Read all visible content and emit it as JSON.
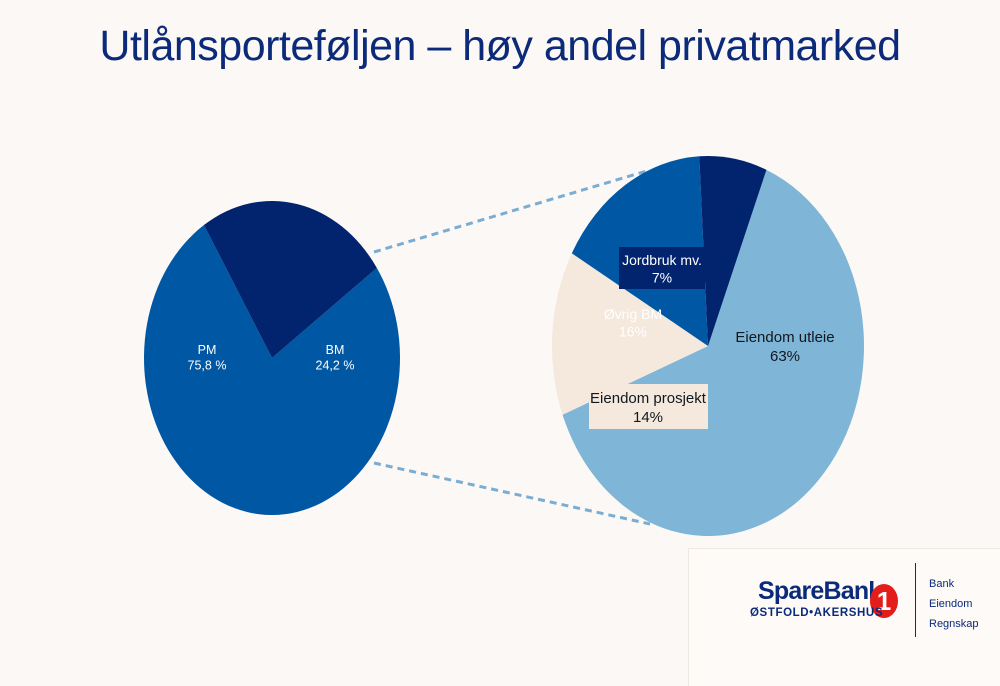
{
  "title": "Utlånsporteføljen – høy andel privatmarked",
  "colors": {
    "background": "#fcf8f5",
    "title": "#0b2a7a",
    "pm": "#0057a3",
    "bm": "#02246e",
    "eiendom_utleie": "#7fb5d6",
    "eiendom_prosjekt": "#f5e8dd",
    "ovrig_bm": "#0057a3",
    "jordbruk": "#02246e",
    "connector": "#79add3"
  },
  "chart_data": [
    {
      "type": "pie",
      "title": "",
      "start_angle_deg": -35,
      "slices": [
        {
          "label": "PM",
          "value_text": "75,8 %",
          "value": 75.8,
          "color": "#0057a3",
          "text_color": "#ffffff"
        },
        {
          "label": "BM",
          "value_text": "24,2 %",
          "value": 24.2,
          "color": "#02246e",
          "text_color": "#ffffff"
        }
      ]
    },
    {
      "type": "pie",
      "title": "",
      "start_angle_deg": -68,
      "slices": [
        {
          "label": "Eiendom utleie",
          "value_text": "63%",
          "value": 63,
          "color": "#7fb5d6",
          "text_color": "#101820"
        },
        {
          "label": "Eiendom prosjekt",
          "value_text": "14%",
          "value": 14,
          "color": "#f5e8dd",
          "text_color": "#101820"
        },
        {
          "label": "Øvrig BM",
          "value_text": "16%",
          "value": 16,
          "color": "#0057a3",
          "text_color": "#ffffff"
        },
        {
          "label": "Jordbruk mv.",
          "value_text": "7%",
          "value": 7,
          "color": "#02246e",
          "text_color": "#ffffff"
        }
      ]
    }
  ],
  "logo": {
    "brand": "SpareBank",
    "brand_number": "1",
    "subtitle": "ØSTFOLD•AKERSHUS",
    "links": [
      "Bank",
      "Eiendom",
      "Regnskap"
    ]
  }
}
